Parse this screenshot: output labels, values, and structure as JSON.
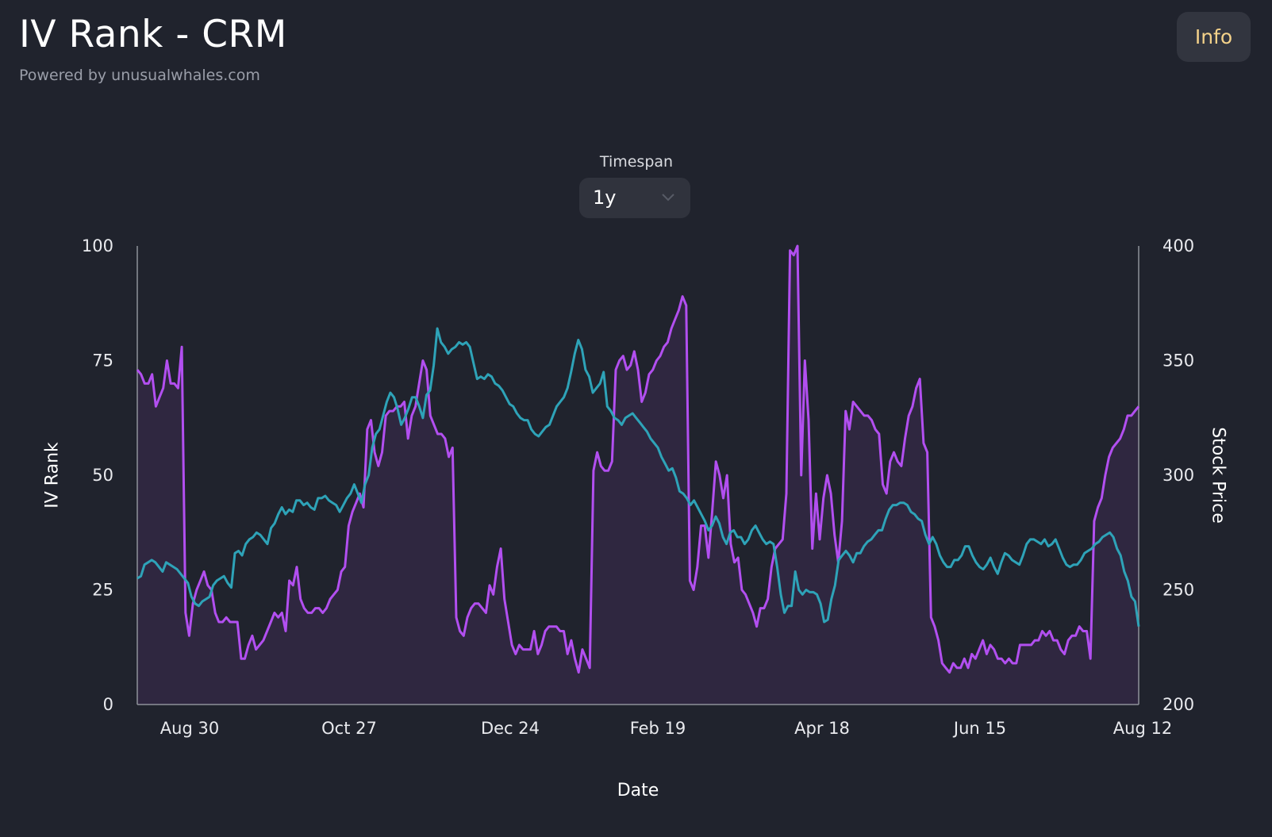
{
  "header": {
    "title": "IV Rank - CRM",
    "subtitle": "Powered by unusualwhales.com",
    "info_label": "Info"
  },
  "controls": {
    "timespan_label": "Timespan",
    "timespan_value": "1y",
    "chevron_icon": "chevron-down-icon"
  },
  "colors": {
    "background": "#20232d",
    "iv_rank": "#b24ff0",
    "iv_rank_fill": "#2f2740",
    "stock_price": "#2ea3b8",
    "info_text": "#f4d28a"
  },
  "chart_data": {
    "type": "line",
    "xlabel": "Date",
    "y_left_label": "IV Rank",
    "y_right_label": "Stock Price",
    "y_left_lim": [
      0,
      100
    ],
    "y_right_lim": [
      200,
      400
    ],
    "y_left_ticks": [
      "100",
      "75",
      "50",
      "25",
      "0"
    ],
    "y_right_ticks": [
      "400",
      "350",
      "300",
      "250",
      "200"
    ],
    "x_ticks": [
      "Aug 30",
      "Oct 27",
      "Dec 24",
      "Feb 19",
      "Apr 18",
      "Jun 15",
      "Aug 12"
    ],
    "series": [
      {
        "key": "iv_rank",
        "axis": "left",
        "filled": true,
        "values": [
          73,
          72,
          70,
          70,
          72,
          65,
          67,
          69,
          75,
          70,
          70,
          69,
          78,
          20,
          15,
          22,
          25,
          27,
          29,
          26,
          25,
          20,
          18,
          18,
          19,
          18,
          18,
          18,
          10,
          10,
          13,
          15,
          12,
          13,
          14,
          16,
          18,
          20,
          19,
          20,
          16,
          27,
          26,
          30,
          23,
          21,
          20,
          20,
          21,
          21,
          20,
          21,
          23,
          24,
          25,
          29,
          30,
          39,
          42,
          44,
          46,
          43,
          60,
          62,
          55,
          52,
          55,
          63,
          64,
          64,
          65,
          65,
          66,
          58,
          63,
          65,
          70,
          75,
          73,
          63,
          61,
          59,
          59,
          58,
          54,
          56,
          19,
          16,
          15,
          19,
          21,
          22,
          22,
          21,
          20,
          26,
          24,
          30,
          34,
          23,
          18,
          13,
          11,
          13,
          12,
          12,
          12,
          16,
          11,
          13,
          16,
          17,
          17,
          17,
          16,
          16,
          11,
          14,
          10,
          7,
          12,
          10,
          8,
          51,
          55,
          52,
          51,
          51,
          53,
          73,
          75,
          76,
          73,
          74,
          77,
          73,
          66,
          68,
          72,
          73,
          75,
          76,
          78,
          79,
          82,
          84,
          86,
          89,
          87,
          27,
          25,
          30,
          39,
          39,
          32,
          42,
          53,
          50,
          45,
          50,
          35,
          31,
          32,
          25,
          24,
          22,
          20,
          17,
          21,
          21,
          23,
          30,
          34,
          35,
          36,
          46,
          99,
          98,
          100,
          50,
          75,
          62,
          34,
          46,
          36,
          45,
          50,
          46,
          37,
          31,
          40,
          64,
          60,
          66,
          65,
          64,
          63,
          63,
          62,
          60,
          59,
          48,
          46,
          53,
          55,
          53,
          52,
          58,
          63,
          65,
          69,
          71,
          57,
          55,
          19,
          17,
          14,
          9,
          8,
          7,
          9,
          8,
          8,
          10,
          8,
          11,
          10,
          12,
          14,
          11,
          13,
          12,
          10,
          10,
          9,
          10,
          9,
          9,
          13,
          13,
          13,
          13,
          14,
          14,
          16,
          15,
          16,
          14,
          14,
          12,
          11,
          14,
          15,
          15,
          17,
          16,
          16,
          10,
          40,
          43,
          45,
          50,
          54,
          56,
          57,
          58,
          60,
          63,
          63,
          64,
          65
        ]
      },
      {
        "key": "stock_price",
        "axis": "right",
        "filled": false,
        "values": [
          255,
          256,
          261,
          262,
          263,
          262,
          260,
          258,
          262,
          261,
          260,
          259,
          257,
          255,
          253,
          247,
          244,
          243,
          245,
          246,
          247,
          252,
          254,
          255,
          256,
          253,
          251,
          266,
          267,
          265,
          270,
          272,
          273,
          275,
          274,
          272,
          270,
          277,
          279,
          283,
          286,
          283,
          285,
          284,
          289,
          289,
          287,
          288,
          286,
          285,
          290,
          290,
          291,
          289,
          288,
          287,
          284,
          287,
          290,
          292,
          296,
          292,
          288,
          296,
          300,
          312,
          318,
          320,
          326,
          332,
          336,
          334,
          329,
          322,
          325,
          329,
          334,
          334,
          330,
          325,
          335,
          337,
          348,
          364,
          358,
          356,
          353,
          355,
          356,
          358,
          357,
          358,
          356,
          349,
          342,
          343,
          342,
          344,
          343,
          340,
          339,
          337,
          334,
          331,
          330,
          327,
          325,
          324,
          324,
          320,
          318,
          317,
          319,
          321,
          322,
          326,
          330,
          332,
          334,
          338,
          345,
          353,
          359,
          355,
          346,
          343,
          336,
          338,
          340,
          345,
          330,
          328,
          325,
          324,
          322,
          325,
          326,
          327,
          325,
          323,
          321,
          319,
          316,
          314,
          312,
          308,
          305,
          302,
          303,
          299,
          293,
          292,
          290,
          287,
          289,
          286,
          283,
          280,
          276,
          278,
          282,
          279,
          273,
          270,
          275,
          276,
          273,
          273,
          270,
          272,
          276,
          278,
          275,
          272,
          270,
          271,
          270,
          260,
          248,
          240,
          243,
          243,
          258,
          250,
          248,
          250,
          249,
          249,
          248,
          244,
          236,
          237,
          246,
          252,
          263,
          265,
          267,
          265,
          262,
          266,
          266,
          269,
          271,
          272,
          274,
          276,
          276,
          281,
          285,
          287,
          287,
          288,
          288,
          287,
          284,
          283,
          281,
          280,
          274,
          270,
          273,
          270,
          265,
          262,
          260,
          260,
          263,
          263,
          265,
          269,
          269,
          265,
          262,
          260,
          259,
          261,
          264,
          260,
          257,
          262,
          266,
          265,
          263,
          262,
          261,
          265,
          270,
          272,
          272,
          271,
          270,
          272,
          269,
          270,
          272,
          268,
          264,
          261,
          260,
          261,
          261,
          263,
          266,
          267,
          268,
          270,
          271,
          273,
          274,
          275,
          273,
          268,
          265,
          258,
          254,
          247,
          245,
          234
        ]
      }
    ]
  }
}
